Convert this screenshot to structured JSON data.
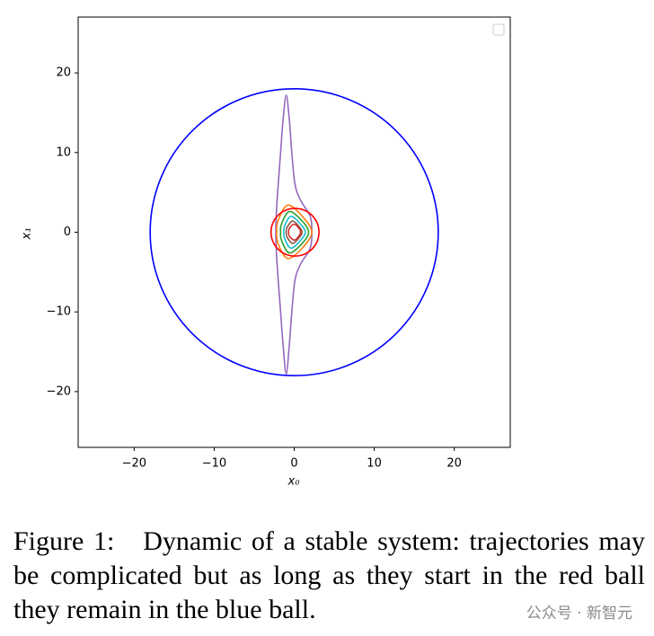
{
  "chart_data": {
    "type": "line",
    "xlabel": "x₀",
    "ylabel": "x₁",
    "xlim": [
      -27,
      27
    ],
    "ylim": [
      -27,
      27
    ],
    "xticks": [
      {
        "value": -20,
        "label": "−20"
      },
      {
        "value": -10,
        "label": "−10"
      },
      0,
      10,
      20
    ],
    "yticks": [
      {
        "value": -20,
        "label": "−20"
      },
      {
        "value": -10,
        "label": "−10"
      },
      0,
      10,
      20
    ],
    "series": [
      {
        "color": "#0000ff",
        "x": [
          18,
          16.63,
          12.73,
          6.89,
          0,
          -6.89,
          -12.73,
          -16.63,
          -18,
          -16.63,
          -12.73,
          -6.89,
          0,
          6.89,
          12.73,
          16.63,
          18
        ],
        "values": [
          0,
          6.89,
          12.73,
          16.63,
          18,
          16.63,
          12.73,
          6.89,
          0,
          -6.89,
          -12.73,
          -16.63,
          -18,
          -16.63,
          -12.73,
          -6.89,
          0
        ]
      },
      {
        "color": "#9467bd",
        "x": [
          -1.0,
          -0.6,
          -0.3,
          0.1,
          0.8,
          2,
          2.2,
          2,
          0.8,
          0.1,
          -0.3,
          -0.6,
          -1.0,
          -1.4,
          -1.7,
          -2.0,
          -2.2,
          -2.3,
          -2.2,
          -2.0,
          -1.7,
          -1.4,
          -1.0
        ],
        "values": [
          17.2,
          14,
          10,
          6,
          4,
          2,
          0,
          -2,
          -4,
          -6,
          -10,
          -14,
          -17.8,
          -14,
          -10,
          -6,
          -3,
          0,
          3,
          6,
          10,
          14,
          17.2
        ]
      },
      {
        "color": "#ff7f0e",
        "x": [
          -0.8,
          1,
          2.2,
          1,
          -0.8,
          -2,
          -2.2,
          -2,
          -0.8
        ],
        "values": [
          3.4,
          2,
          0,
          -2,
          -3.3,
          -1.5,
          0,
          1.5,
          3.4
        ]
      },
      {
        "color": "#2ca02c",
        "x": [
          -0.6,
          1,
          1.8,
          1,
          -0.6,
          -1.6,
          -1.7,
          -1.6,
          -0.6
        ],
        "values": [
          2.6,
          1.4,
          0,
          -1.4,
          -2.6,
          -1,
          0,
          1,
          2.6
        ]
      },
      {
        "color": "#17becf",
        "x": [
          -0.4,
          0.8,
          1.4,
          0.8,
          -0.4,
          -1.2,
          -1.3,
          -1.2,
          -0.4
        ],
        "values": [
          2,
          1,
          0,
          -1,
          -2,
          -0.8,
          0,
          0.8,
          2
        ]
      },
      {
        "color": "#8c564b",
        "x": [
          -0.2,
          0.6,
          1,
          0.6,
          -0.2,
          -0.9,
          -1,
          -0.9,
          -0.2
        ],
        "values": [
          1.4,
          0.7,
          0,
          -0.7,
          -1.4,
          -0.6,
          0,
          0.6,
          1.4
        ]
      },
      {
        "color": "#d62728",
        "x": [
          0,
          0.6,
          0.8,
          0.5,
          0,
          -0.6,
          -0.7,
          -0.6,
          0
        ],
        "values": [
          1,
          0.5,
          0,
          -0.6,
          -1,
          -0.5,
          0,
          0.5,
          1
        ]
      },
      {
        "color": "#ff0000",
        "x": [
          3.1,
          2.7,
          1.6,
          0.1,
          -1.4,
          -2.5,
          -2.9,
          -2.5,
          -1.4,
          0.1,
          1.6,
          2.7,
          3.1
        ],
        "values": [
          0,
          1.5,
          2.6,
          3,
          2.6,
          1.5,
          0,
          -1.5,
          -2.6,
          -3,
          -2.6,
          -1.5,
          0
        ]
      }
    ]
  },
  "caption": {
    "label": "Figure 1:",
    "text": "Dynamic of a stable system: trajectories may be complicated but as long as they start in the red ball they remain in the blue ball."
  },
  "watermark": "公众号 · 新智元"
}
